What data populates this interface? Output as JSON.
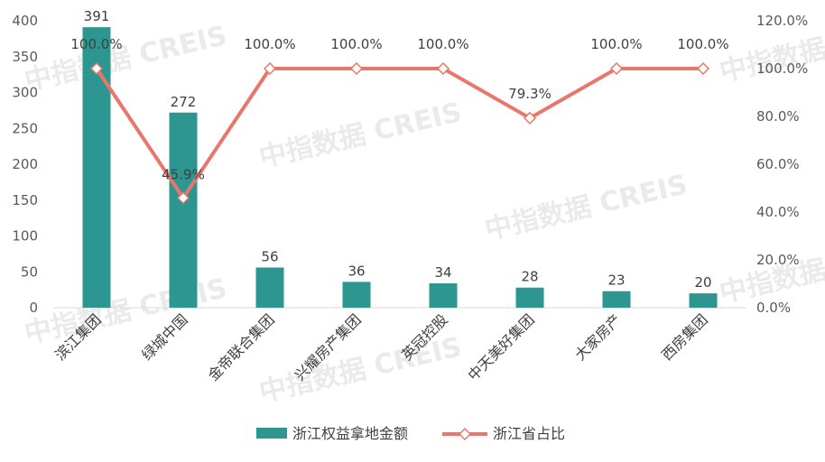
{
  "chart_data": {
    "type": "bar",
    "categories": [
      "滨江集团",
      "绿城中国",
      "金帝联合集团",
      "兴耀房产集团",
      "英冠控股",
      "中天美好集团",
      "大家房产",
      "西房集团"
    ],
    "series": [
      {
        "name": "浙江权益拿地金额",
        "type": "bar",
        "axis": "left",
        "color": "#2e9690",
        "values": [
          391,
          272,
          56,
          36,
          34,
          28,
          23,
          20
        ],
        "labels": [
          "391",
          "272",
          "56",
          "36",
          "34",
          "28",
          "23",
          "20"
        ]
      },
      {
        "name": "浙江省占比",
        "type": "line",
        "axis": "right",
        "color": "#e8766a",
        "values": [
          100.0,
          45.9,
          100.0,
          100.0,
          100.0,
          79.3,
          100.0,
          100.0
        ],
        "labels": [
          "100.0%",
          "45.9%",
          "100.0%",
          "100.0%",
          "100.0%",
          "79.3%",
          "100.0%",
          "100.0%"
        ]
      }
    ],
    "y_left": {
      "min": 0,
      "max": 400,
      "step": 50,
      "ticks": [
        "0",
        "50",
        "100",
        "150",
        "200",
        "250",
        "300",
        "350",
        "400"
      ]
    },
    "y_right": {
      "min": 0,
      "max": 120,
      "step": 20,
      "ticks": [
        "0.0%",
        "20.0%",
        "40.0%",
        "60.0%",
        "80.0%",
        "100.0%",
        "120.0%"
      ]
    },
    "grid": false,
    "legend_position": "bottom",
    "watermark": "中指数据 CREIS"
  }
}
